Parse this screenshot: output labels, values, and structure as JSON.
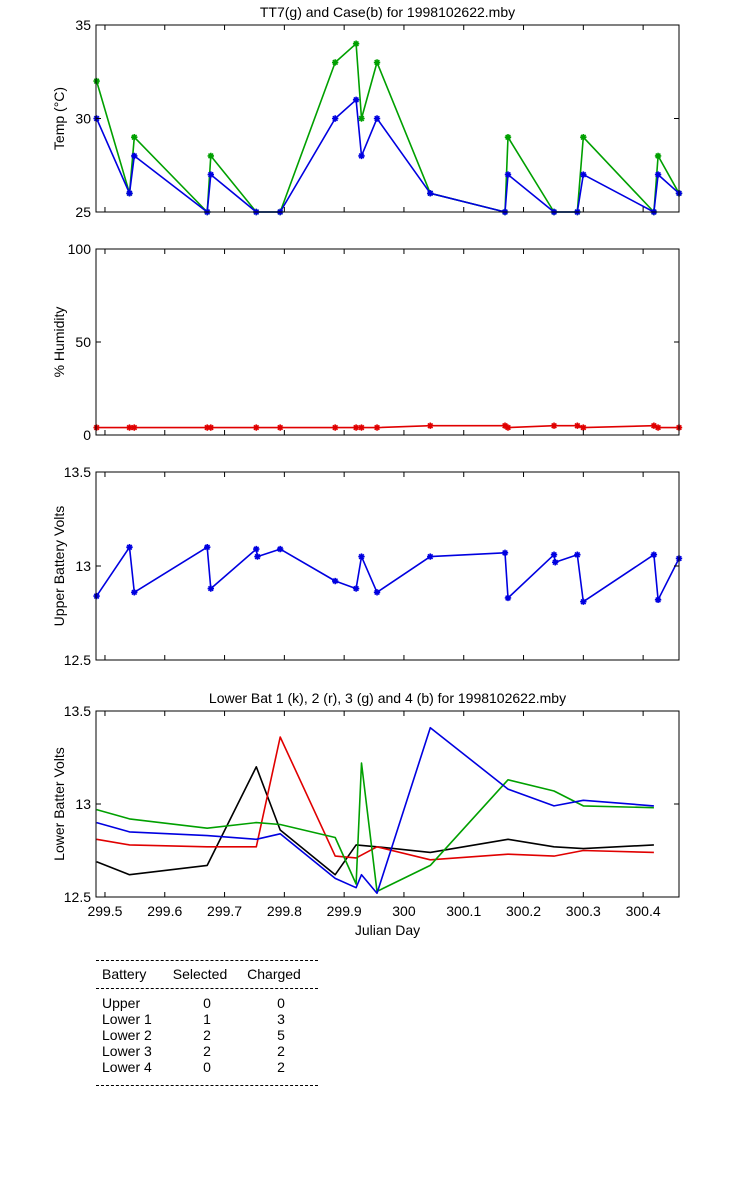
{
  "chart_data": [
    {
      "type": "line",
      "title": "TT7(g) and Case(b) for 1998102622.mby",
      "xlabel": "",
      "ylabel": "Temp  (°C)",
      "xlim": [
        299.485,
        300.46
      ],
      "ylim": [
        25,
        35
      ],
      "yticks": [
        25,
        30,
        35
      ],
      "xticks": [
        299.5,
        299.6,
        299.7,
        299.8,
        299.9,
        300,
        300.1,
        300.2,
        300.3,
        300.4
      ],
      "show_xtick_labels": false,
      "series": [
        {
          "color": "#00a000",
          "marker": "star",
          "x": [
            299.486,
            299.541,
            299.549,
            299.671,
            299.677,
            299.753,
            299.793,
            299.885,
            299.92,
            299.929,
            299.955,
            300.044,
            300.169,
            300.174,
            300.251,
            300.29,
            300.3,
            300.418,
            300.425,
            300.46
          ],
          "y": [
            32,
            26,
            29,
            25,
            28,
            25,
            25,
            33,
            34,
            30,
            33,
            26,
            25,
            29,
            25,
            25,
            29,
            25,
            28,
            26
          ]
        },
        {
          "color": "#0000e0",
          "marker": "star",
          "x": [
            299.486,
            299.541,
            299.549,
            299.671,
            299.677,
            299.753,
            299.793,
            299.885,
            299.92,
            299.929,
            299.955,
            300.044,
            300.169,
            300.174,
            300.251,
            300.29,
            300.3,
            300.418,
            300.425,
            300.46
          ],
          "y": [
            30,
            26,
            28,
            25,
            27,
            25,
            25,
            30,
            31,
            28,
            30,
            26,
            25,
            27,
            25,
            25,
            27,
            25,
            27,
            26
          ]
        }
      ]
    },
    {
      "type": "line",
      "title": "",
      "xlabel": "",
      "ylabel": "% Humidity",
      "xlim": [
        299.485,
        300.46
      ],
      "ylim": [
        0,
        100
      ],
      "yticks": [
        0,
        50,
        100
      ],
      "xticks": [
        299.5,
        299.6,
        299.7,
        299.8,
        299.9,
        300,
        300.1,
        300.2,
        300.3,
        300.4
      ],
      "show_xtick_labels": false,
      "series": [
        {
          "color": "#e00000",
          "marker": "star",
          "x": [
            299.486,
            299.541,
            299.549,
            299.671,
            299.677,
            299.753,
            299.793,
            299.885,
            299.92,
            299.929,
            299.955,
            300.044,
            300.169,
            300.174,
            300.251,
            300.29,
            300.3,
            300.418,
            300.425,
            300.46
          ],
          "y": [
            4,
            4,
            4,
            4,
            4,
            4,
            4,
            4,
            4,
            4,
            4,
            5,
            5,
            4,
            5,
            5,
            4,
            5,
            4,
            4
          ]
        }
      ]
    },
    {
      "type": "line",
      "title": "",
      "xlabel": "",
      "ylabel": "Upper Battery Volts",
      "xlim": [
        299.485,
        300.46
      ],
      "ylim": [
        12.5,
        13.5
      ],
      "yticks": [
        12.5,
        13,
        13.5
      ],
      "xticks": [
        299.5,
        299.6,
        299.7,
        299.8,
        299.9,
        300,
        300.1,
        300.2,
        300.3,
        300.4
      ],
      "show_xtick_labels": false,
      "series": [
        {
          "color": "#0000e0",
          "marker": "star",
          "x": [
            299.486,
            299.541,
            299.549,
            299.671,
            299.677,
            299.753,
            299.755,
            299.793,
            299.885,
            299.92,
            299.929,
            299.955,
            300.044,
            300.169,
            300.174,
            300.251,
            300.253,
            300.29,
            300.3,
            300.418,
            300.425,
            300.46
          ],
          "y": [
            12.84,
            13.1,
            12.86,
            13.1,
            12.88,
            13.09,
            13.05,
            13.09,
            12.92,
            12.88,
            13.05,
            12.86,
            13.05,
            13.07,
            12.83,
            13.06,
            13.02,
            13.06,
            12.81,
            13.06,
            12.82,
            13.04
          ]
        }
      ]
    },
    {
      "type": "line",
      "title": "Lower Bat 1 (k), 2 (r), 3 (g) and 4 (b) for 1998102622.mby",
      "xlabel": "Julian Day",
      "ylabel": "Lower Batter Volts",
      "xlim": [
        299.485,
        300.46
      ],
      "ylim": [
        12.5,
        13.5
      ],
      "yticks": [
        12.5,
        13,
        13.5
      ],
      "xticks": [
        299.5,
        299.6,
        299.7,
        299.8,
        299.9,
        300,
        300.1,
        300.2,
        300.3,
        300.4
      ],
      "xticklabels": [
        "299.5",
        "299.6",
        "299.7",
        "299.8",
        "299.9",
        "300",
        "300.1",
        "300.2",
        "300.3",
        "300.4"
      ],
      "show_xtick_labels": true,
      "series": [
        {
          "color": "#000000",
          "marker": "none",
          "x": [
            299.486,
            299.541,
            299.671,
            299.753,
            299.793,
            299.885,
            299.92,
            299.955,
            300.044,
            300.174,
            300.251,
            300.3,
            300.418
          ],
          "y": [
            12.69,
            12.62,
            12.67,
            13.2,
            12.86,
            12.62,
            12.78,
            12.77,
            12.74,
            12.81,
            12.77,
            12.76,
            12.78
          ]
        },
        {
          "color": "#e00000",
          "marker": "none",
          "x": [
            299.486,
            299.541,
            299.671,
            299.753,
            299.793,
            299.885,
            299.92,
            299.955,
            300.044,
            300.174,
            300.251,
            300.3,
            300.418
          ],
          "y": [
            12.81,
            12.78,
            12.77,
            12.77,
            13.36,
            12.72,
            12.71,
            12.77,
            12.7,
            12.73,
            12.72,
            12.75,
            12.74
          ]
        },
        {
          "color": "#00a000",
          "marker": "none",
          "x": [
            299.486,
            299.541,
            299.671,
            299.753,
            299.793,
            299.885,
            299.92,
            299.929,
            299.955,
            300.044,
            300.174,
            300.251,
            300.3,
            300.418
          ],
          "y": [
            12.97,
            12.92,
            12.87,
            12.9,
            12.89,
            12.82,
            12.57,
            13.22,
            12.53,
            12.67,
            13.13,
            13.07,
            12.99,
            12.98
          ]
        },
        {
          "color": "#0000e0",
          "marker": "none",
          "x": [
            299.486,
            299.541,
            299.671,
            299.753,
            299.793,
            299.885,
            299.92,
            299.929,
            299.955,
            300.044,
            300.174,
            300.251,
            300.3,
            300.418
          ],
          "y": [
            12.9,
            12.85,
            12.83,
            12.81,
            12.84,
            12.6,
            12.55,
            12.62,
            12.52,
            13.41,
            13.08,
            12.99,
            13.02,
            12.99
          ]
        }
      ]
    }
  ],
  "summary": {
    "headers": [
      "Battery",
      "Selected",
      "Charged"
    ],
    "rows": [
      [
        "Upper",
        "0",
        "0"
      ],
      [
        "Lower 1",
        "1",
        "3"
      ],
      [
        "Lower 2",
        "2",
        "5"
      ],
      [
        "Lower 3",
        "2",
        "2"
      ],
      [
        "Lower 4",
        "0",
        "2"
      ]
    ]
  }
}
